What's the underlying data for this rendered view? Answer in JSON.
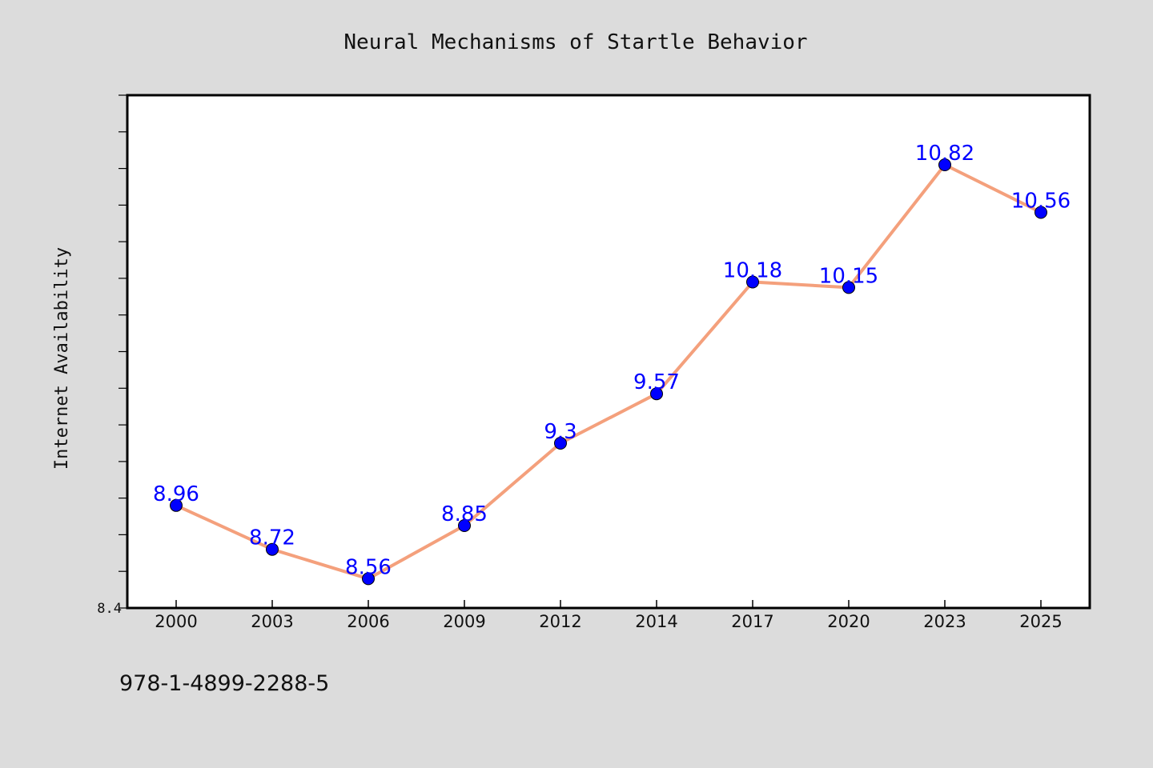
{
  "chart_data": {
    "type": "line",
    "title": "Neural Mechanisms of Startle Behavior",
    "xlabel": "",
    "ylabel": "Internet Availability",
    "categories": [
      "2000",
      "2003",
      "2006",
      "2009",
      "2012",
      "2014",
      "2017",
      "2020",
      "2023",
      "2025"
    ],
    "series": [
      {
        "values": [
          8.96,
          8.72,
          8.56,
          8.85,
          9.3,
          9.57,
          10.18,
          10.15,
          10.82,
          10.56
        ],
        "labels": [
          "8.96",
          "8.72",
          "8.56",
          "8.85",
          "9.3",
          "9.57",
          "10.18",
          "10.15",
          "10.82",
          "10.56"
        ]
      }
    ],
    "ylim": [
      8.4,
      11.2
    ],
    "y_tick_label": "8.4",
    "grid": false,
    "legend": "none",
    "colors": {
      "line": "#f4a07c",
      "marker": "#0000ff",
      "label": "#0000ff",
      "frame": "#000000",
      "plot_bg": "#ffffff",
      "page_bg": "#dcdcdc"
    }
  },
  "footer": {
    "isbn": "978-1-4899-2288-5"
  }
}
